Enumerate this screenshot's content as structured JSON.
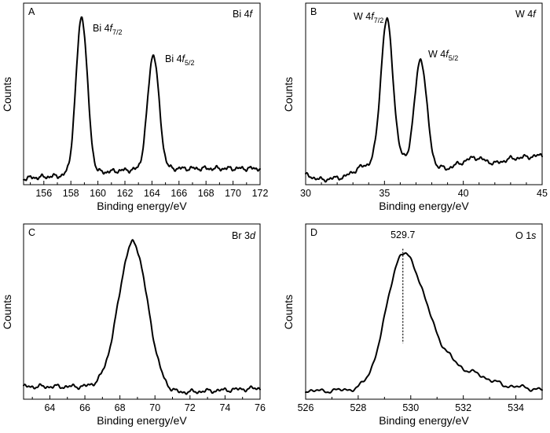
{
  "chart_data": [
    {
      "panel": "A",
      "type": "line",
      "title_parts": [
        "Bi 4",
        "f"
      ],
      "xlabel": "Binding energy/eV",
      "ylabel": "Counts",
      "xlim": [
        154.5,
        172
      ],
      "ylim": [
        0,
        1.05
      ],
      "xticks": [
        156,
        158,
        160,
        162,
        164,
        166,
        168,
        170,
        172
      ],
      "baseline": [
        [
          154.5,
          0.01
        ],
        [
          158,
          0.03
        ],
        [
          162,
          0.06
        ],
        [
          166,
          0.07
        ],
        [
          172,
          0.07
        ]
      ],
      "peaks": [
        {
          "center": 158.8,
          "height": 0.96,
          "width": 0.42,
          "label_main": "Bi 4",
          "label_italic": "f",
          "label_sub": "7/2"
        },
        {
          "center": 164.1,
          "height": 0.7,
          "width": 0.42,
          "label_main": "Bi 4",
          "label_italic": "f",
          "label_sub": "5/2"
        }
      ]
    },
    {
      "panel": "B",
      "type": "line",
      "title_parts": [
        "W 4",
        "f"
      ],
      "xlabel": "Binding energy/eV",
      "ylabel": "Counts",
      "xlim": [
        30,
        45
      ],
      "ylim": [
        0,
        1.05
      ],
      "xticks": [
        30,
        35,
        40,
        45
      ],
      "baseline": [
        [
          30,
          0.03
        ],
        [
          31,
          0.0
        ],
        [
          32.5,
          0.02
        ],
        [
          33.5,
          0.08
        ],
        [
          35,
          0.12
        ],
        [
          36.3,
          0.12
        ],
        [
          38,
          0.08
        ],
        [
          39,
          0.07
        ],
        [
          40.7,
          0.14
        ],
        [
          42,
          0.1
        ],
        [
          43,
          0.13
        ],
        [
          45,
          0.15
        ]
      ],
      "peaks": [
        {
          "center": 35.15,
          "height": 0.86,
          "width": 0.38,
          "label_main": "W 4",
          "label_italic": "f",
          "label_sub": "7/2"
        },
        {
          "center": 37.3,
          "height": 0.64,
          "width": 0.38,
          "label_main": "W 4",
          "label_italic": "f",
          "label_sub": "5/2"
        }
      ]
    },
    {
      "panel": "C",
      "type": "line",
      "title_parts": [
        "Br 3",
        "d"
      ],
      "xlabel": "Binding energy/eV",
      "ylabel": "Counts",
      "xlim": [
        62.5,
        76
      ],
      "ylim": [
        0,
        1.05
      ],
      "xticks": [
        64,
        66,
        68,
        70,
        72,
        74,
        76
      ],
      "baseline": [
        [
          62.5,
          0.05
        ],
        [
          67,
          0.05
        ],
        [
          71,
          0.01
        ],
        [
          76,
          0.04
        ]
      ],
      "peaks": [
        {
          "center": 68.75,
          "height": 0.93,
          "width": 0.82
        }
      ]
    },
    {
      "panel": "D",
      "type": "line",
      "title_parts": [
        "O 1",
        "s"
      ],
      "xlabel": "Binding energy/eV",
      "ylabel": "Counts",
      "xlim": [
        526,
        535
      ],
      "ylim": [
        0,
        1.05
      ],
      "xticks": [
        526,
        528,
        530,
        532,
        534
      ],
      "baseline": [
        [
          526,
          0.02
        ],
        [
          528,
          0.03
        ],
        [
          530,
          0.08
        ],
        [
          531.5,
          0.16
        ],
        [
          532.5,
          0.13
        ],
        [
          533.5,
          0.06
        ],
        [
          535,
          0.03
        ]
      ],
      "peaks": [
        {
          "center": 529.7,
          "height": 0.82,
          "width_left": 0.62,
          "width_right": 0.85
        }
      ],
      "marker": {
        "x": 529.7,
        "label": "529.7"
      }
    }
  ]
}
